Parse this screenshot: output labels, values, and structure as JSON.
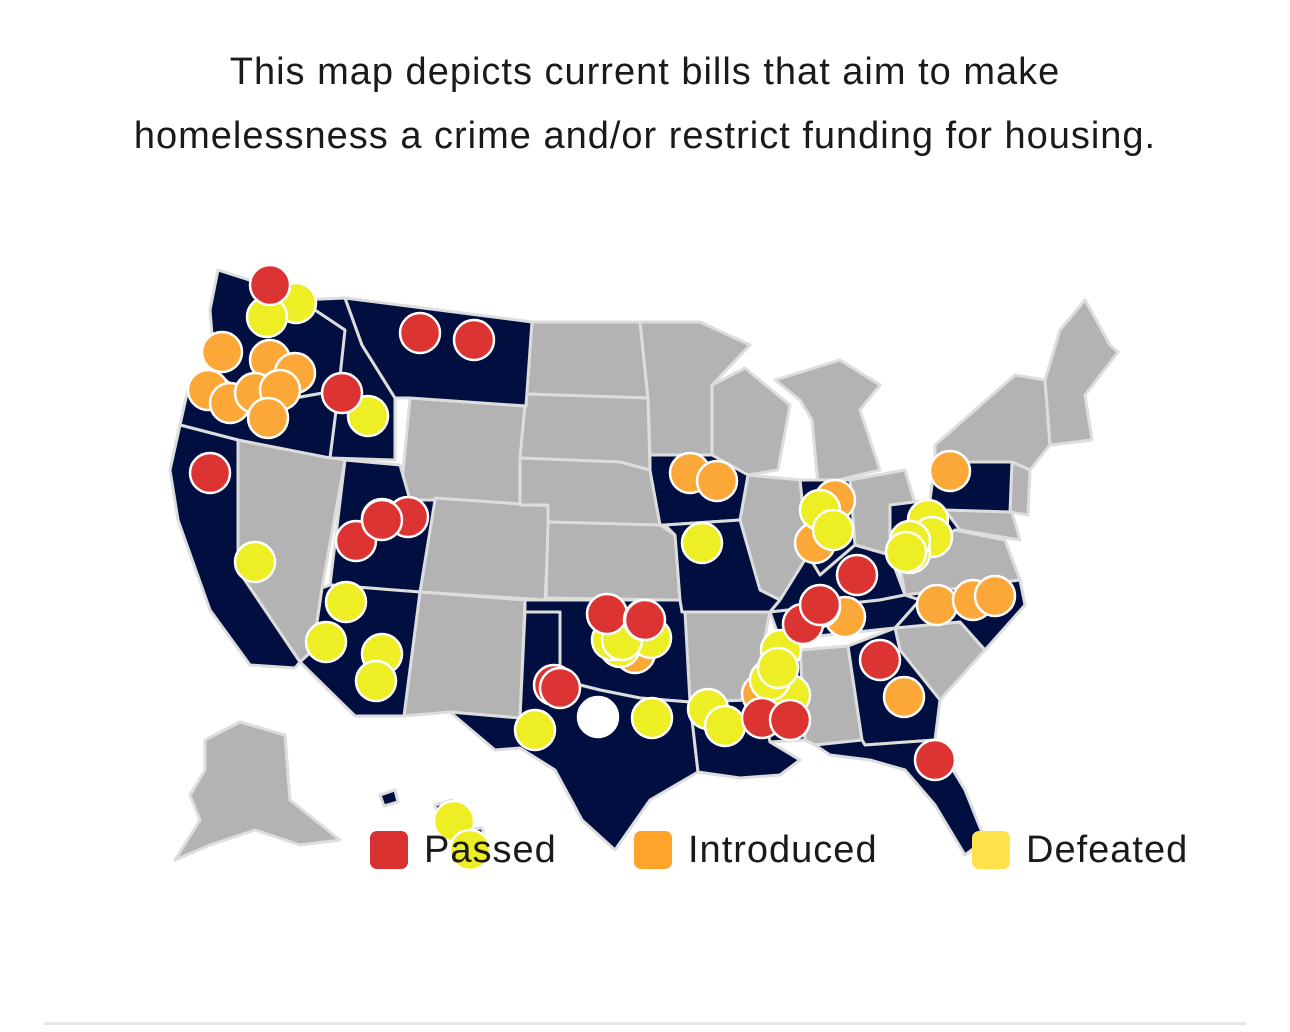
{
  "title": {
    "line1": "This map depicts current bills that aim to make",
    "line2": "homelessness a crime and/or restrict funding for housing."
  },
  "legend": [
    {
      "label": "Passed",
      "color": "#d93030"
    },
    {
      "label": "Introduced",
      "color": "#ffa32b"
    },
    {
      "label": "Defeated",
      "color": "#ffe24a"
    }
  ],
  "colors": {
    "state_with_bills": "#000f40",
    "state_without_bills": "#b3b3b3",
    "border": "#dddddd",
    "passed": "#dc3333",
    "introduced": "#fca838",
    "defeated": "#edee23",
    "other": "#ffffff"
  },
  "map": {
    "states_with_bills": [
      "WA",
      "OR",
      "CA",
      "ID",
      "MT",
      "UT",
      "AZ",
      "TX",
      "OK",
      "MO",
      "IA",
      "TN",
      "KY",
      "MS",
      "LA",
      "GA",
      "FL",
      "NC",
      "PA",
      "WV",
      "IN",
      "HI"
    ],
    "markers": {
      "passed": 22,
      "introduced": 20,
      "defeated": 30,
      "other": 1
    }
  }
}
